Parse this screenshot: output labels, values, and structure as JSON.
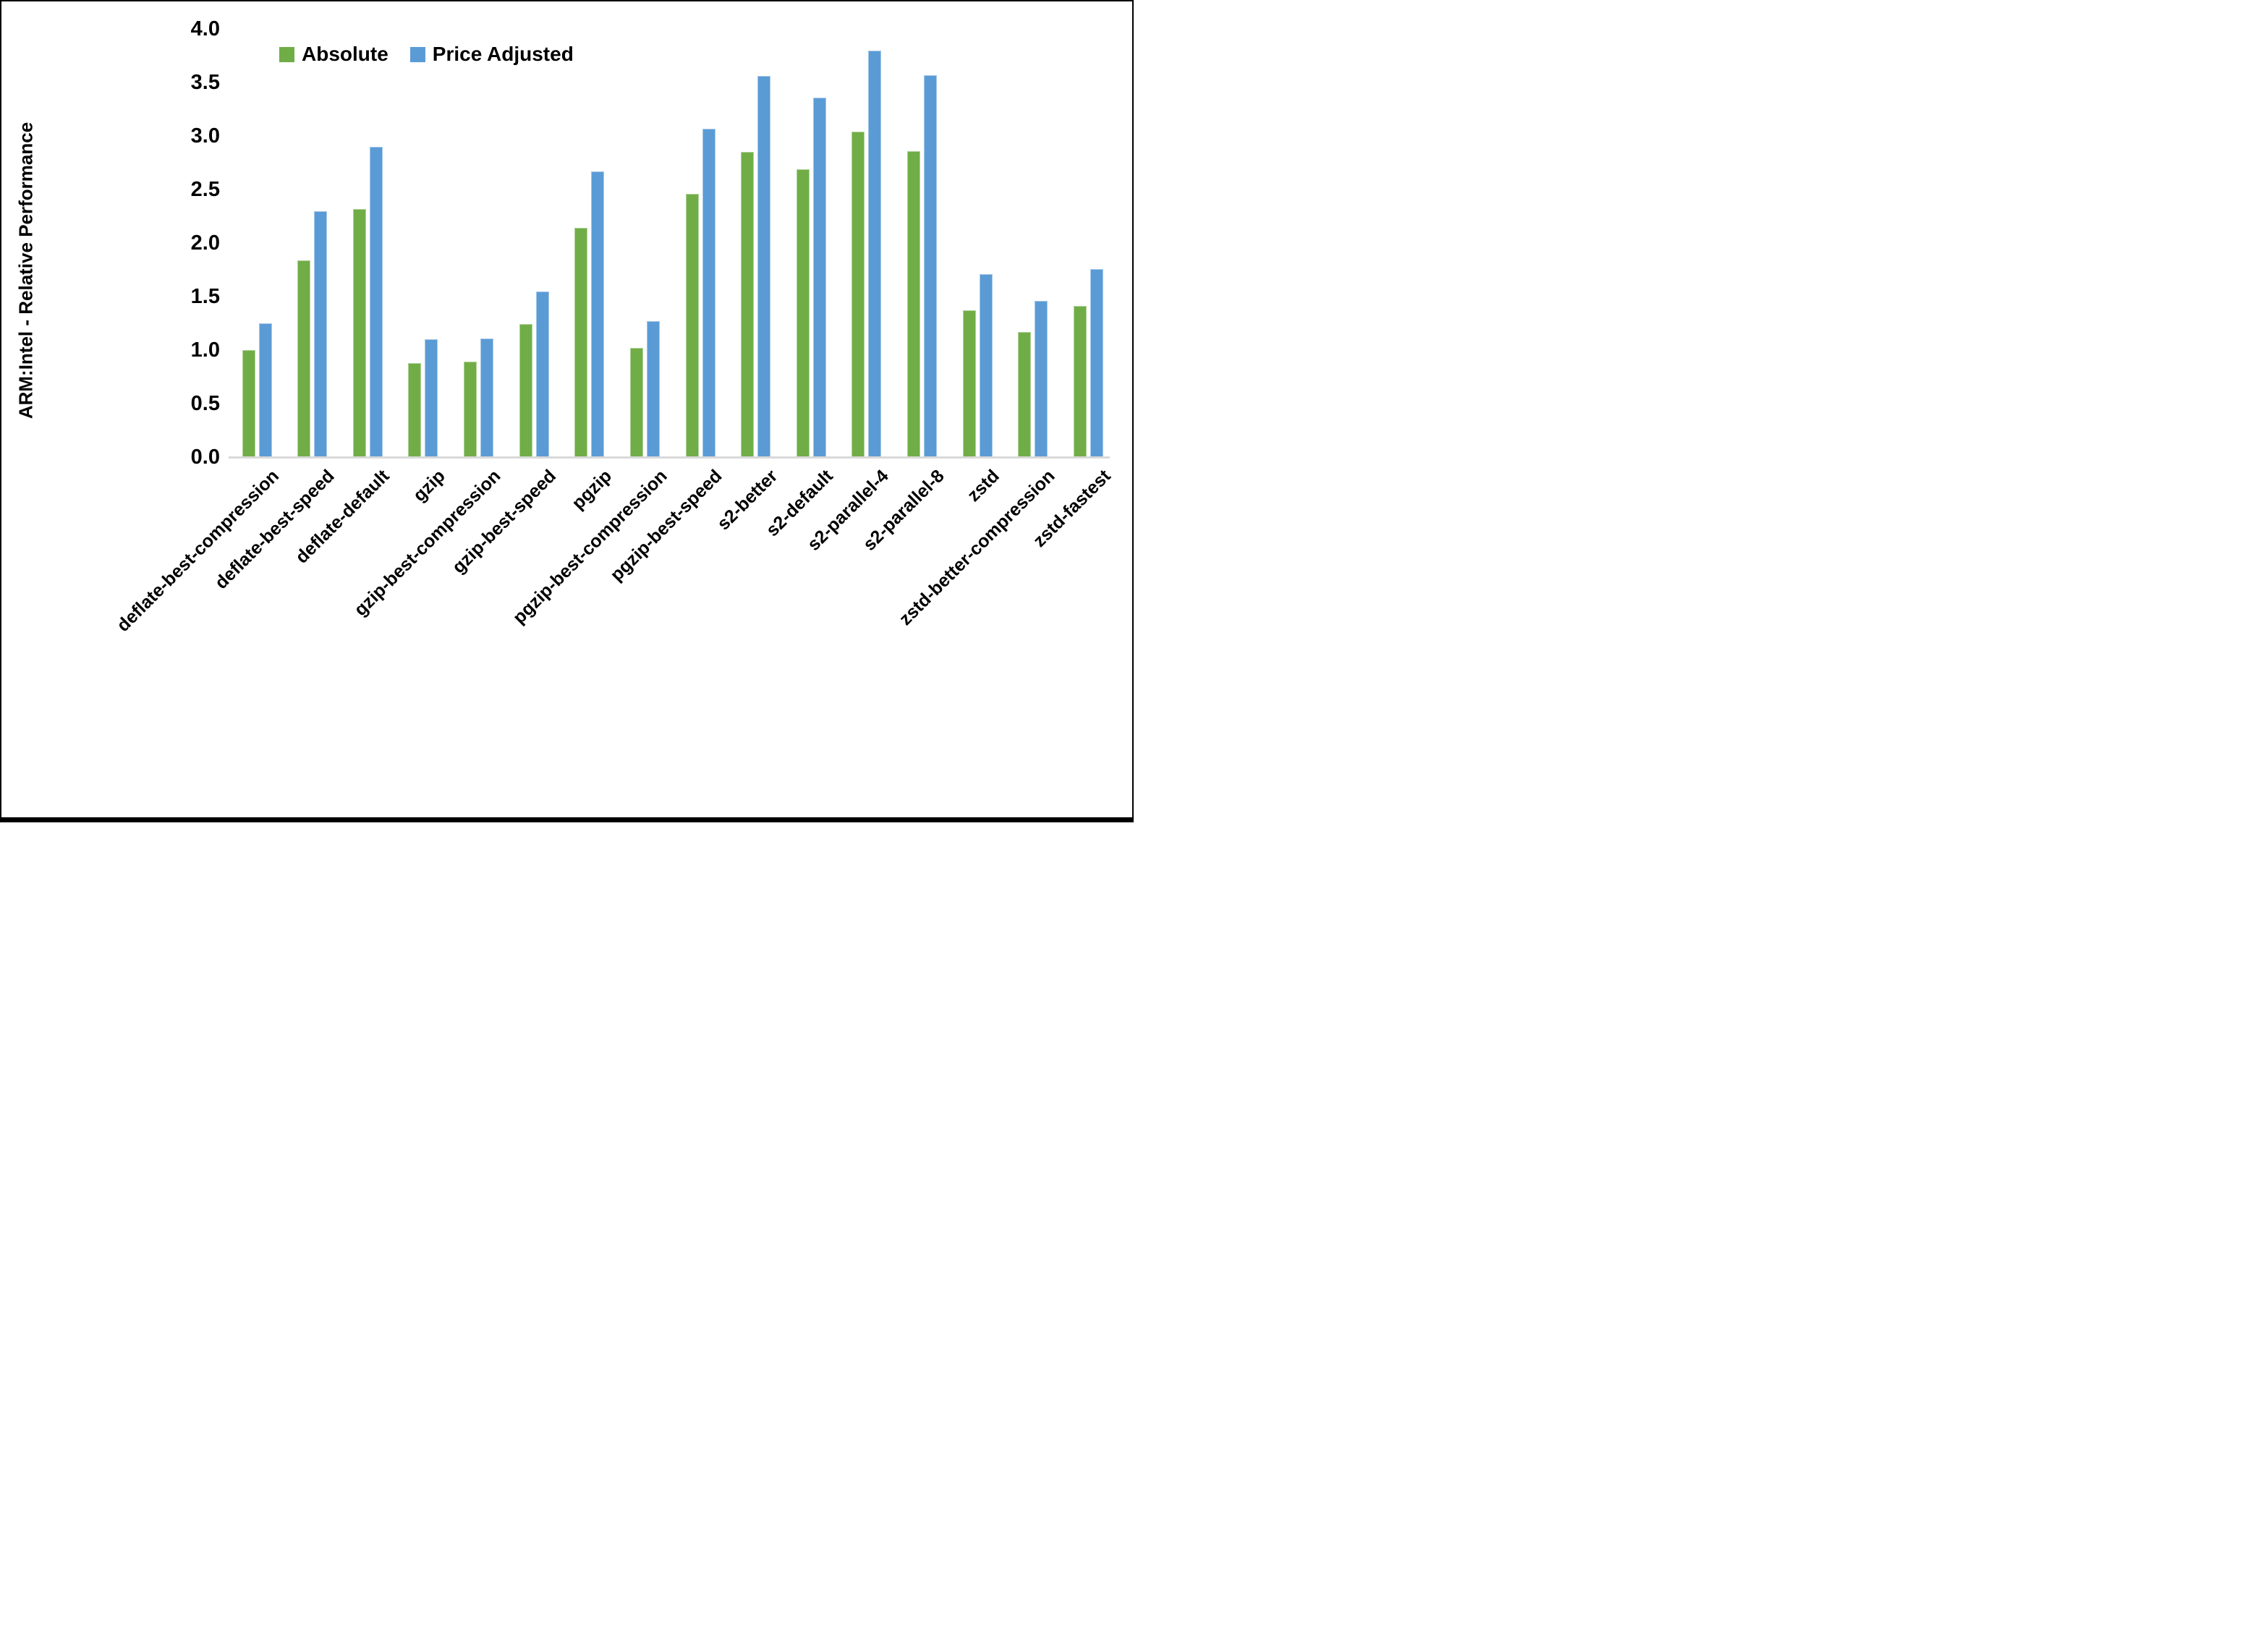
{
  "chart_data": {
    "type": "bar",
    "title": "",
    "xlabel": "",
    "ylabel": "ARM:Intel - Relative Performance",
    "ylim": [
      0.0,
      4.0
    ],
    "ytick_step": 0.5,
    "y_ticks": [
      "0.0",
      "0.5",
      "1.0",
      "1.5",
      "2.0",
      "2.5",
      "3.0",
      "3.5",
      "4.0"
    ],
    "grid": false,
    "legend_position": "top-center-inside",
    "baseline_color": "#d9d9d9",
    "categories": [
      "deflate-best-compression",
      "deflate-best-speed",
      "deflate-default",
      "gzip",
      "gzip-best-compression",
      "gzip-best-speed",
      "pgzip",
      "pgzip-best-compression",
      "pgzip-best-speed",
      "s2-better",
      "s2-default",
      "s2-parallel-4",
      "s2-parallel-8",
      "zstd",
      "zstd-better-compression",
      "zstd-fastest"
    ],
    "series": [
      {
        "name": "Absolute",
        "color": "#70AD47",
        "values": [
          1.0,
          1.84,
          2.32,
          0.88,
          0.89,
          1.24,
          2.14,
          1.02,
          2.46,
          2.85,
          2.69,
          3.04,
          2.86,
          1.37,
          1.17,
          1.41
        ]
      },
      {
        "name": "Price Adjusted",
        "color": "#5B9BD5",
        "values": [
          1.25,
          2.3,
          2.9,
          1.1,
          1.11,
          1.55,
          2.67,
          1.27,
          3.07,
          3.56,
          3.36,
          3.8,
          3.57,
          1.71,
          1.46,
          1.76
        ]
      }
    ]
  }
}
